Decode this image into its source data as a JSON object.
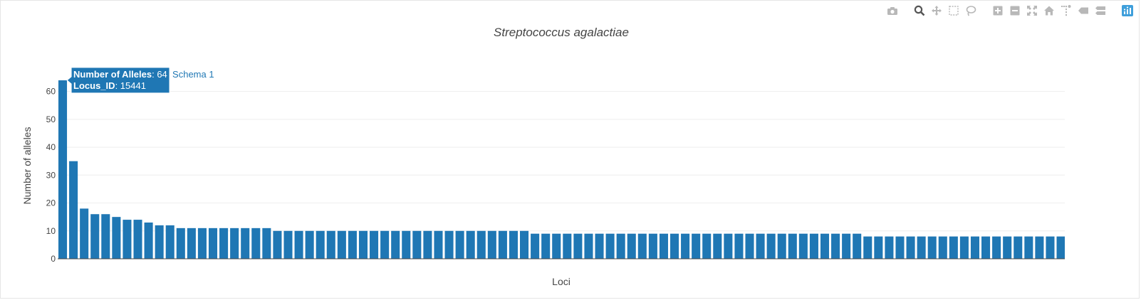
{
  "modebar": {
    "buttons": [
      {
        "name": "camera-icon",
        "group": 0
      },
      {
        "name": "zoom-icon",
        "group": 1,
        "active": true
      },
      {
        "name": "pan-icon",
        "group": 1
      },
      {
        "name": "box-select-icon",
        "group": 1
      },
      {
        "name": "lasso-select-icon",
        "group": 1
      },
      {
        "name": "zoom-in-icon",
        "group": 2
      },
      {
        "name": "zoom-out-icon",
        "group": 2
      },
      {
        "name": "autoscale-icon",
        "group": 2
      },
      {
        "name": "reset-axes-icon",
        "group": 2
      },
      {
        "name": "spike-lines-icon",
        "group": 2
      },
      {
        "name": "hover-closest-icon",
        "group": 2
      },
      {
        "name": "hover-compare-icon",
        "group": 2
      },
      {
        "name": "plotly-logo-icon",
        "group": 3
      }
    ],
    "icon_color": "#b8b8b8",
    "active_color": "#555555",
    "logo_color": "#3f9fdb"
  },
  "chart_data": {
    "type": "bar",
    "title": "Streptococcus agalactiae",
    "xlabel": "Loci",
    "ylabel": "Number of alleles",
    "ylim": [
      0,
      65
    ],
    "yticks": [
      0,
      10,
      20,
      30,
      40,
      50,
      60
    ],
    "grid": true,
    "bar_color": "#1f77b4",
    "series": [
      {
        "name": "Schema 1",
        "values": [
          64,
          35,
          18,
          16,
          16,
          15,
          14,
          14,
          13,
          12,
          12,
          11,
          11,
          11,
          11,
          11,
          11,
          11,
          11,
          11,
          10,
          10,
          10,
          10,
          10,
          10,
          10,
          10,
          10,
          10,
          10,
          10,
          10,
          10,
          10,
          10,
          10,
          10,
          10,
          10,
          10,
          10,
          10,
          10,
          9,
          9,
          9,
          9,
          9,
          9,
          9,
          9,
          9,
          9,
          9,
          9,
          9,
          9,
          9,
          9,
          9,
          9,
          9,
          9,
          9,
          9,
          9,
          9,
          9,
          9,
          9,
          9,
          9,
          9,
          9,
          8,
          8,
          8,
          8,
          8,
          8,
          8,
          8,
          8,
          8,
          8,
          8,
          8,
          8,
          8,
          8,
          8,
          8,
          8,
          8,
          8,
          8,
          8,
          8,
          8,
          8,
          8,
          8,
          8,
          8,
          8,
          8,
          8,
          8,
          8,
          8,
          8,
          8,
          8,
          8
        ]
      }
    ],
    "hover": {
      "bar_index": 0,
      "line1_label": "Number of Alleles",
      "line1_value": ": 64",
      "line2_label": "Locus_ID",
      "line2_value": ": 15441",
      "trace_name": "Schema 1"
    }
  }
}
